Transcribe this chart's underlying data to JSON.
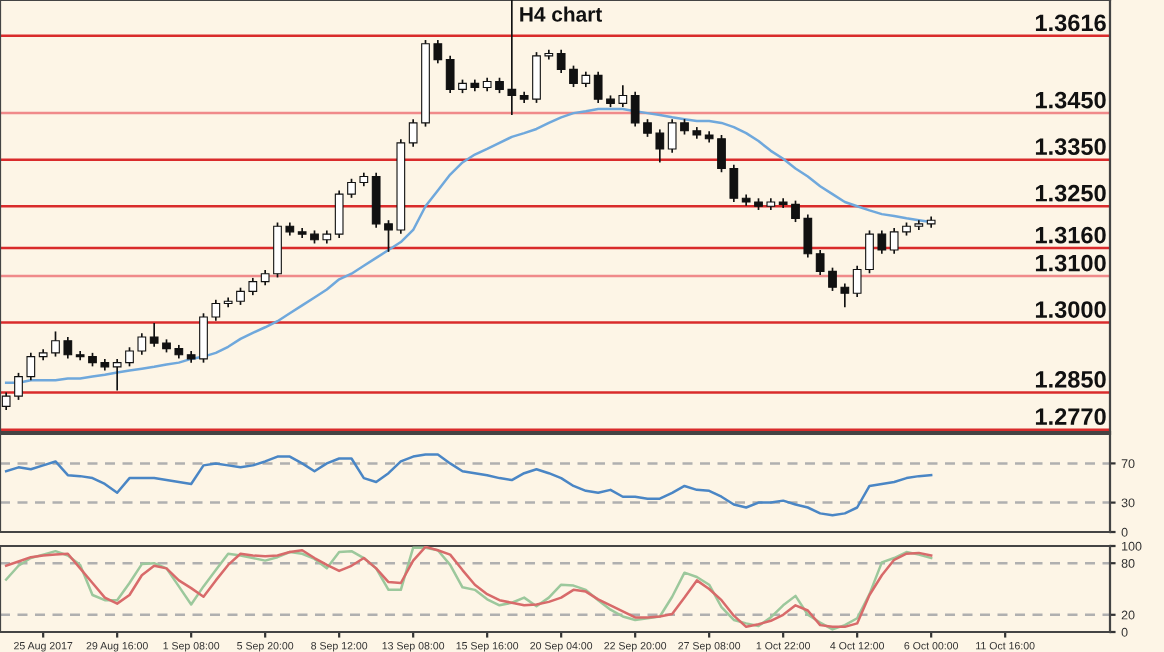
{
  "chart_data": [
    {
      "type": "candlestick",
      "title": "H4 chart",
      "ohlc": [
        [
          1.282,
          1.285,
          1.2812,
          1.2842
        ],
        [
          1.2842,
          1.2892,
          1.2834,
          1.2884
        ],
        [
          1.2884,
          1.2935,
          1.2876,
          1.2927
        ],
        [
          1.2927,
          1.2943,
          1.2919,
          1.2935
        ],
        [
          1.2935,
          1.2981,
          1.2927,
          1.2961
        ],
        [
          1.2961,
          1.2969,
          1.2923,
          1.2931
        ],
        [
          1.2931,
          1.2939,
          1.2919,
          1.2927
        ],
        [
          1.2927,
          1.2935,
          1.2906,
          1.2914
        ],
        [
          1.2914,
          1.2922,
          1.2897,
          1.2905
        ],
        [
          1.2905,
          1.2922,
          1.2854,
          1.2914
        ],
        [
          1.2914,
          1.2947,
          1.2906,
          1.2939
        ],
        [
          1.2939,
          1.2977,
          1.2931,
          1.2969
        ],
        [
          1.2969,
          1.2999,
          1.2948,
          1.2956
        ],
        [
          1.2956,
          1.2964,
          1.2936,
          1.2944
        ],
        [
          1.2944,
          1.2952,
          1.2923,
          1.2931
        ],
        [
          1.2931,
          1.2939,
          1.2914,
          1.2922
        ],
        [
          1.2922,
          1.302,
          1.2914,
          1.3012
        ],
        [
          1.3012,
          1.3049,
          1.3004,
          1.3041
        ],
        [
          1.3041,
          1.3054,
          1.3033,
          1.3046
        ],
        [
          1.3046,
          1.3075,
          1.3038,
          1.3067
        ],
        [
          1.3067,
          1.3096,
          1.3059,
          1.3088
        ],
        [
          1.3088,
          1.3113,
          1.308,
          1.3105
        ],
        [
          1.3105,
          1.3215,
          1.3097,
          1.3207
        ],
        [
          1.3207,
          1.3215,
          1.3187,
          1.3195
        ],
        [
          1.3195,
          1.3203,
          1.3182,
          1.319
        ],
        [
          1.319,
          1.3198,
          1.317,
          1.3178
        ],
        [
          1.3178,
          1.3198,
          1.317,
          1.319
        ],
        [
          1.319,
          1.3284,
          1.3182,
          1.3276
        ],
        [
          1.3276,
          1.3309,
          1.3268,
          1.3301
        ],
        [
          1.3301,
          1.3322,
          1.3293,
          1.3314
        ],
        [
          1.3314,
          1.3322,
          1.3204,
          1.3212
        ],
        [
          1.3212,
          1.322,
          1.3152,
          1.3199
        ],
        [
          1.3199,
          1.3394,
          1.3191,
          1.3386
        ],
        [
          1.3386,
          1.3437,
          1.3378,
          1.3429
        ],
        [
          1.3429,
          1.3607,
          1.3421,
          1.3599
        ],
        [
          1.3599,
          1.3607,
          1.3557,
          1.3565
        ],
        [
          1.3565,
          1.3573,
          1.3493,
          1.3501
        ],
        [
          1.3501,
          1.3522,
          1.3493,
          1.3514
        ],
        [
          1.3514,
          1.3522,
          1.3497,
          1.3505
        ],
        [
          1.3505,
          1.3526,
          1.3497,
          1.3518
        ],
        [
          1.3518,
          1.3526,
          1.3493,
          1.3501
        ],
        [
          1.3501,
          1.3693,
          1.3446,
          1.3488
        ],
        [
          1.3488,
          1.3496,
          1.3472,
          1.348
        ],
        [
          1.348,
          1.3581,
          1.3472,
          1.3573
        ],
        [
          1.3573,
          1.3586,
          1.3565,
          1.3578
        ],
        [
          1.3578,
          1.3586,
          1.3536,
          1.3544
        ],
        [
          1.3544,
          1.3552,
          1.3506,
          1.3514
        ],
        [
          1.3514,
          1.3539,
          1.3506,
          1.3531
        ],
        [
          1.3531,
          1.3539,
          1.3472,
          1.348
        ],
        [
          1.348,
          1.3488,
          1.3463,
          1.3471
        ],
        [
          1.3471,
          1.351,
          1.3463,
          1.3488
        ],
        [
          1.3488,
          1.3496,
          1.3421,
          1.3429
        ],
        [
          1.3429,
          1.3437,
          1.3399,
          1.3407
        ],
        [
          1.3407,
          1.3415,
          1.3344,
          1.3373
        ],
        [
          1.3373,
          1.3437,
          1.3365,
          1.3429
        ],
        [
          1.3429,
          1.3437,
          1.3404,
          1.3412
        ],
        [
          1.3412,
          1.342,
          1.3395,
          1.3403
        ],
        [
          1.3403,
          1.3411,
          1.3387,
          1.3395
        ],
        [
          1.3395,
          1.3403,
          1.3323,
          1.3331
        ],
        [
          1.3331,
          1.3339,
          1.3259,
          1.3267
        ],
        [
          1.3267,
          1.3275,
          1.3251,
          1.3259
        ],
        [
          1.3259,
          1.3267,
          1.3242,
          1.325
        ],
        [
          1.325,
          1.3267,
          1.3242,
          1.3259
        ],
        [
          1.3259,
          1.3267,
          1.3246,
          1.3254
        ],
        [
          1.3254,
          1.3262,
          1.3216,
          1.3224
        ],
        [
          1.3224,
          1.3232,
          1.314,
          1.3148
        ],
        [
          1.3148,
          1.3156,
          1.3102,
          1.311
        ],
        [
          1.311,
          1.3118,
          1.3068,
          1.3076
        ],
        [
          1.3076,
          1.3084,
          1.3033,
          1.3063
        ],
        [
          1.3063,
          1.3122,
          1.3055,
          1.3114
        ],
        [
          1.3114,
          1.3198,
          1.3106,
          1.319
        ],
        [
          1.319,
          1.3198,
          1.3148,
          1.3156
        ],
        [
          1.3156,
          1.3203,
          1.3148,
          1.3195
        ],
        [
          1.3195,
          1.3215,
          1.3187,
          1.3207
        ],
        [
          1.3207,
          1.322,
          1.3199,
          1.3212
        ],
        [
          1.3212,
          1.3228,
          1.3204,
          1.322
        ],
        null,
        null,
        null,
        null,
        null,
        null,
        null,
        null,
        null,
        null,
        null,
        null,
        null,
        null
      ],
      "series": [
        {
          "type": "line",
          "color": "#6fa8dc",
          "values": [
            1.2871,
            1.2871,
            1.2876,
            1.2876,
            1.2876,
            1.288,
            1.288,
            1.2884,
            1.2888,
            1.2893,
            1.2897,
            1.2901,
            1.2905,
            1.291,
            1.2914,
            1.2922,
            1.2927,
            1.2935,
            1.2948,
            1.2965,
            1.2978,
            1.299,
            1.3003,
            1.302,
            1.3037,
            1.3054,
            1.3071,
            1.3093,
            1.3105,
            1.3122,
            1.3139,
            1.3156,
            1.3173,
            1.3199,
            1.325,
            1.3284,
            1.3318,
            1.3344,
            1.3361,
            1.3373,
            1.3386,
            1.3399,
            1.3407,
            1.3416,
            1.3429,
            1.3441,
            1.345,
            1.3454,
            1.3459,
            1.3459,
            1.3459,
            1.3454,
            1.345,
            1.3446,
            1.3441,
            1.3437,
            1.3433,
            1.3433,
            1.3429,
            1.342,
            1.3407,
            1.339,
            1.3369,
            1.3352,
            1.3331,
            1.3314,
            1.3293,
            1.3276,
            1.3259,
            1.325,
            1.3241,
            1.3233,
            1.3229,
            1.3224,
            1.322,
            1.3216,
            null,
            null,
            null,
            null,
            null,
            null,
            null,
            null,
            null,
            null,
            null,
            null,
            null,
            null
          ]
        }
      ],
      "ylim": [
        1.2765,
        1.3693
      ],
      "tick_labels": false,
      "ref_lines": [
        {
          "axis": "y",
          "value": 1.3616,
          "label": "1.3616",
          "color": "#d92b2b"
        },
        {
          "axis": "y",
          "value": 1.345,
          "label": "1.3450",
          "color": "#f08a8a"
        },
        {
          "axis": "y",
          "value": 1.335,
          "label": "1.3350",
          "color": "#d92b2b"
        },
        {
          "axis": "y",
          "value": 1.325,
          "label": "1.3250",
          "color": "#d92b2b"
        },
        {
          "axis": "y",
          "value": 1.316,
          "label": "1.3160",
          "color": "#d92b2b"
        },
        {
          "axis": "y",
          "value": 1.31,
          "label": "1.3100",
          "color": "#f08a8a"
        },
        {
          "axis": "y",
          "value": 1.3,
          "label": "1.3000",
          "color": "#d92b2b"
        },
        {
          "axis": "y",
          "value": 1.285,
          "label": "1.2850",
          "color": "#d92b2b"
        },
        {
          "axis": "y",
          "value": 1.277,
          "label": "1.2770",
          "color": "#d92b2b"
        }
      ]
    },
    {
      "type": "line",
      "series": [
        {
          "color": "#4a86c5",
          "values": [
            62,
            66,
            64,
            68,
            72,
            58,
            57,
            55,
            49,
            40,
            55,
            55,
            55,
            53,
            51,
            49,
            68,
            70,
            68,
            66,
            68,
            72,
            77,
            77,
            70,
            62,
            70,
            75,
            75,
            55,
            51,
            60,
            72,
            77,
            79,
            79,
            70,
            62,
            60,
            58,
            55,
            53,
            60,
            64,
            60,
            55,
            47,
            42,
            40,
            43,
            36,
            36,
            34,
            34,
            40,
            47,
            43,
            42,
            36,
            28,
            25,
            30,
            30,
            32,
            28,
            25,
            19,
            17,
            19,
            25,
            47,
            49,
            51,
            55,
            57,
            58,
            null,
            null,
            null,
            null,
            null,
            null,
            null,
            null,
            null,
            null,
            null,
            null,
            null,
            null
          ]
        }
      ],
      "ylim": [
        0,
        100
      ],
      "yticks": [
        0,
        30,
        70
      ],
      "tick_labels": "y",
      "ref_lines": [
        {
          "axis": "y",
          "value": 70,
          "color": "#b0b0b0",
          "line_style": "dashed"
        },
        {
          "axis": "y",
          "value": 30,
          "color": "#b0b0b0",
          "line_style": "dashed"
        }
      ]
    },
    {
      "type": "line",
      "categories": [
        null,
        null,
        null,
        "25 Aug 2017",
        null,
        null,
        null,
        null,
        null,
        "29 Aug 16:00",
        null,
        null,
        null,
        null,
        null,
        "1 Sep 08:00",
        null,
        null,
        null,
        null,
        null,
        "5 Sep 20:00",
        null,
        null,
        null,
        null,
        null,
        "8 Sep 12:00",
        null,
        null,
        null,
        null,
        null,
        "13 Sep 08:00",
        null,
        null,
        null,
        null,
        null,
        "15 Sep 16:00",
        null,
        null,
        null,
        null,
        null,
        "20 Sep 04:00",
        null,
        null,
        null,
        null,
        null,
        "22 Sep 20:00",
        null,
        null,
        null,
        null,
        null,
        "27 Sep 08:00",
        null,
        null,
        null,
        null,
        null,
        "1 Oct 22:00",
        null,
        null,
        null,
        null,
        null,
        "4 Oct 12:00",
        null,
        null,
        null,
        null,
        null,
        "6 Oct 00:00",
        null,
        null,
        null,
        null,
        null,
        "11 Oct 16:00",
        null,
        null,
        null,
        null,
        null,
        null,
        null,
        null
      ],
      "series": [
        {
          "color": "#9cc89c",
          "values": [
            61,
            77,
            86,
            90,
            94,
            89,
            78,
            43,
            37,
            37,
            57,
            79,
            80,
            74,
            53,
            32,
            53,
            72,
            91,
            89,
            86,
            83,
            87,
            93,
            91,
            85,
            74,
            93,
            94,
            86,
            74,
            49,
            49,
            98,
            98,
            95,
            78,
            52,
            49,
            38,
            31,
            34,
            40,
            30,
            40,
            55,
            54,
            49,
            37,
            26,
            18,
            14,
            16,
            18,
            41,
            69,
            64,
            55,
            29,
            14,
            10,
            7,
            17,
            31,
            42,
            20,
            11,
            3,
            8,
            16,
            44,
            81,
            86,
            93,
            90,
            86,
            null,
            null,
            null,
            null,
            null,
            null,
            null,
            null,
            null,
            null,
            null,
            null,
            null,
            null
          ]
        },
        {
          "color": "#d86a6a",
          "values": [
            77,
            82,
            87,
            89,
            90,
            91,
            74,
            57,
            40,
            33,
            43,
            66,
            77,
            74,
            60,
            51,
            41,
            60,
            78,
            91,
            89,
            88,
            89,
            93,
            95,
            86,
            78,
            71,
            77,
            86,
            74,
            58,
            57,
            83,
            99,
            95,
            90,
            72,
            55,
            44,
            37,
            34,
            31,
            32,
            35,
            40,
            49,
            47,
            38,
            31,
            24,
            17,
            17,
            18,
            21,
            40,
            60,
            50,
            37,
            19,
            6,
            9,
            13,
            20,
            31,
            25,
            8,
            6,
            6,
            10,
            43,
            66,
            84,
            91,
            92,
            89,
            null,
            null,
            null,
            null,
            null,
            null,
            null,
            null,
            null,
            null,
            null,
            null,
            null,
            null
          ]
        }
      ],
      "ylim": [
        0,
        100
      ],
      "yticks": [
        0,
        20,
        80,
        100
      ],
      "ref_lines": [
        {
          "axis": "y",
          "value": 80,
          "color": "#b0b0b0",
          "line_style": "dashed"
        },
        {
          "axis": "y",
          "value": 20,
          "color": "#b0b0b0",
          "line_style": "dashed"
        }
      ]
    }
  ]
}
